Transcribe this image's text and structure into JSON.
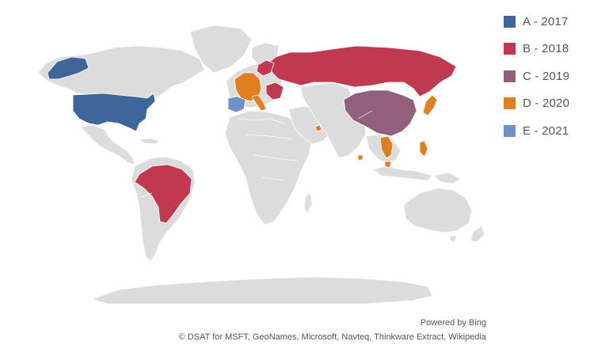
{
  "legend": [
    {
      "label": "A - 2017",
      "color": "#3f669a"
    },
    {
      "label": "B - 2018",
      "color": "#c0394f"
    },
    {
      "label": "C - 2019",
      "color": "#935f7e"
    },
    {
      "label": "D - 2020",
      "color": "#e07e20"
    },
    {
      "label": "E - 2021",
      "color": "#6f8fc8"
    }
  ],
  "land_color": "#dcdcdc",
  "attribution": {
    "powered_by": "Powered by Bing",
    "credits": "© DSAT for MSFT, GeoNames, Microsoft, Navteq, Thinkware Extract, Wikipedia"
  }
}
